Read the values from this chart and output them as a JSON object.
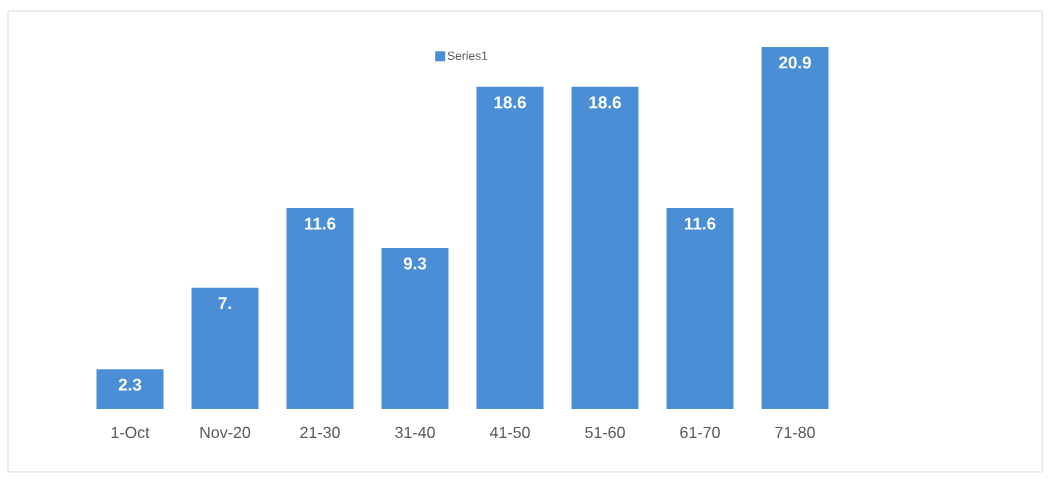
{
  "chart_data": {
    "type": "bar",
    "categories": [
      "1-Oct",
      "Nov-20",
      "21-30",
      "31-40",
      "41-50",
      "51-60",
      "61-70",
      "71-80"
    ],
    "series": [
      {
        "name": "Series1",
        "color": "#4a8fd6",
        "values": [
          2.3,
          7,
          11.6,
          9.3,
          18.6,
          18.6,
          11.6,
          20.9
        ],
        "value_labels": [
          "2.3",
          "7.",
          "11.6",
          "9.3",
          "18.6",
          "18.6",
          "11.6",
          "20.9"
        ]
      }
    ],
    "legend": "top"
  }
}
